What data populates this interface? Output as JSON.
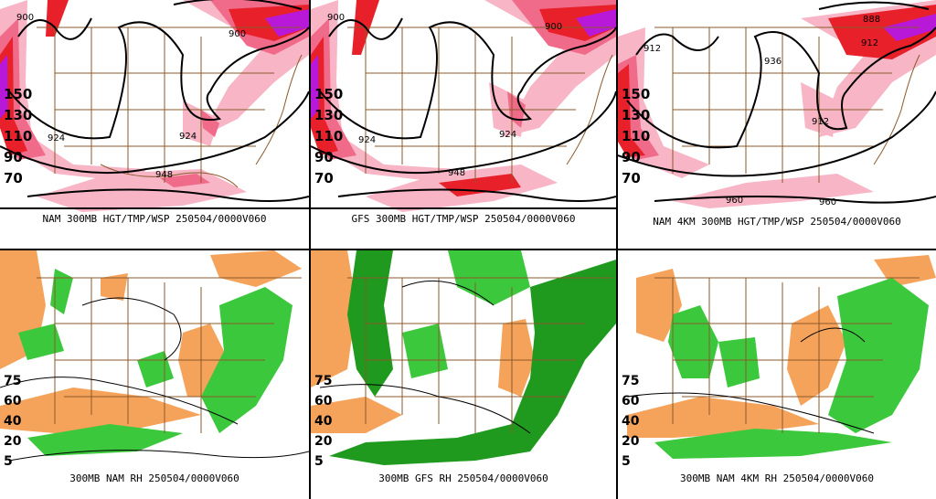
{
  "panels": [
    {
      "id": "nam-300mb-wsp",
      "caption": "NAM 300MB HGT/TMP/WSP 250504/0000V060",
      "legend": [
        "150",
        "130",
        "110",
        "90",
        "70"
      ],
      "contour_labels": [
        "900",
        "900",
        "924",
        "924",
        "948"
      ]
    },
    {
      "id": "gfs-300mb-wsp",
      "caption": "GFS 300MB HGT/TMP/WSP 250504/0000V060",
      "legend": [
        "150",
        "130",
        "110",
        "90",
        "70"
      ],
      "contour_labels": [
        "900",
        "900",
        "924",
        "924",
        "948"
      ]
    },
    {
      "id": "nam4km-300mb-wsp",
      "caption": "NAM 4KM 300MB HGT/TMP/WSP 250504/0000V060",
      "legend": [
        "150",
        "130",
        "110",
        "90",
        "70"
      ],
      "contour_labels": [
        "888",
        "912",
        "912",
        "936",
        "912",
        "960",
        "960"
      ]
    },
    {
      "id": "nam-300mb-rh",
      "caption": "300MB NAM RH 250504/0000V060",
      "legend": [
        "75",
        "60",
        "40",
        "20",
        "5"
      ]
    },
    {
      "id": "gfs-300mb-rh",
      "caption": "300MB GFS RH 250504/0000V060",
      "legend": [
        "75",
        "60",
        "40",
        "20",
        "5"
      ]
    },
    {
      "id": "nam4km-300mb-rh",
      "caption": "300MB NAM 4KM RH 250504/0000V060",
      "legend": [
        "75",
        "60",
        "40",
        "20",
        "5"
      ]
    }
  ],
  "colors": {
    "wind_light": "#f7b5c6",
    "wind_mid": "#f06a8a",
    "wind_strong": "#e8202a",
    "wind_max": "#b818d8",
    "rh_dry": "#f5a25a",
    "rh_moist": "#3cc83c",
    "rh_wet": "#1f9a1f",
    "map_lines": "#8b5a2b",
    "contours": "#000000"
  }
}
